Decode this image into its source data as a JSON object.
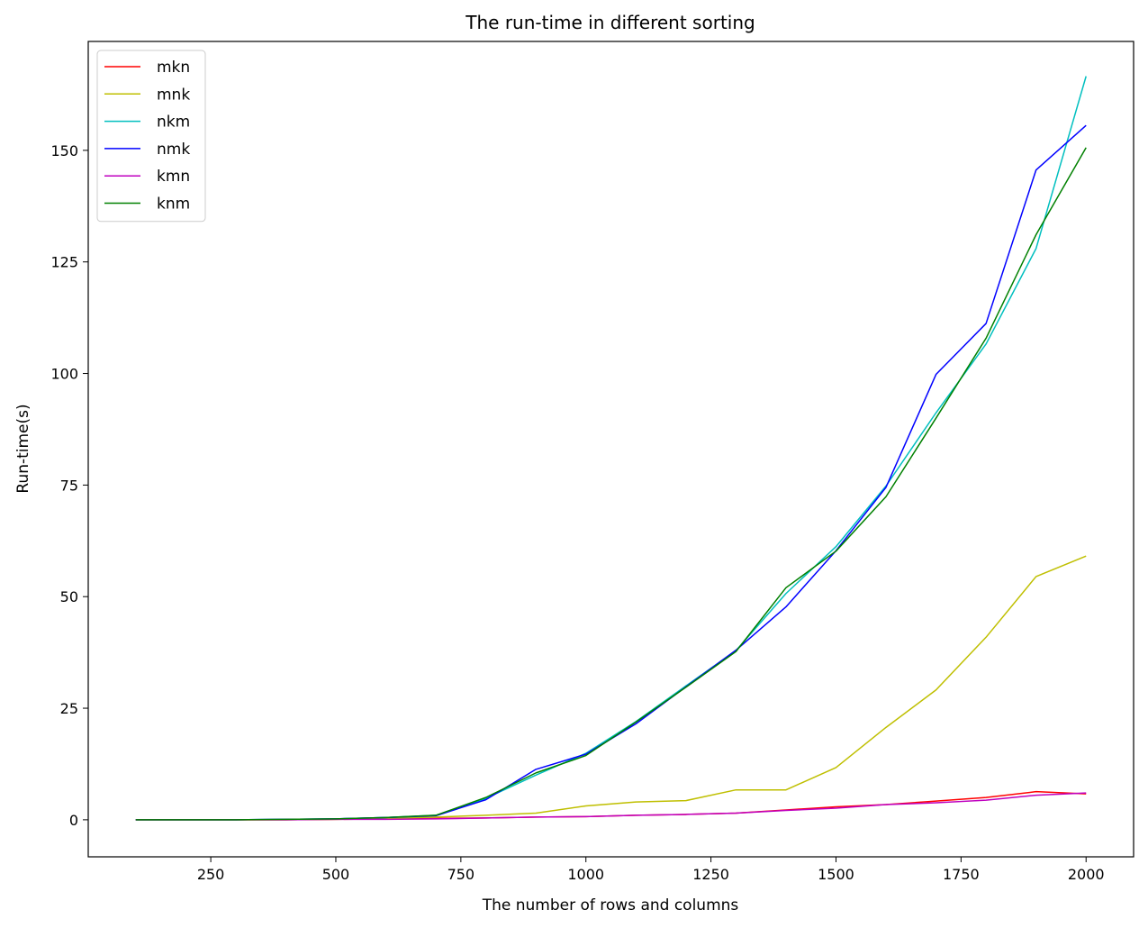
{
  "chart_data": {
    "type": "line",
    "title": "The run-time in different sorting",
    "xlabel": "The number of rows and columns",
    "ylabel": "Run-time(s)",
    "xlim": [
      5,
      2095
    ],
    "ylim": [
      -8.3,
      174.4
    ],
    "xticks": [
      250,
      500,
      750,
      1000,
      1250,
      1500,
      1750,
      2000
    ],
    "yticks": [
      0,
      25,
      50,
      75,
      100,
      125,
      150
    ],
    "grid": false,
    "legend_position": "top-left",
    "x": [
      100,
      200,
      300,
      400,
      500,
      600,
      700,
      800,
      900,
      1000,
      1100,
      1200,
      1300,
      1400,
      1500,
      1600,
      1700,
      1800,
      1900,
      2000
    ],
    "series": [
      {
        "name": "mkn",
        "color": "#ff0000",
        "values": [
          0,
          0,
          0,
          0,
          0.1,
          0.2,
          0.3,
          0.4,
          0.6,
          0.7,
          1.0,
          1.2,
          1.5,
          2.2,
          2.9,
          3.4,
          4.2,
          5.0,
          6.3,
          5.8
        ]
      },
      {
        "name": "mnk",
        "color": "#bfbf00",
        "values": [
          0,
          0,
          0,
          0,
          0.1,
          0.3,
          0.6,
          1.0,
          1.5,
          3.1,
          4.0,
          4.3,
          6.7,
          6.7,
          11.7,
          20.7,
          29.1,
          40.9,
          54.5,
          59.1
        ]
      },
      {
        "name": "nkm",
        "color": "#00bfbf",
        "values": [
          0,
          0,
          0,
          0.1,
          0.2,
          0.5,
          1.0,
          4.8,
          10.0,
          14.9,
          22.0,
          30.0,
          37.9,
          50.7,
          61.2,
          74.8,
          91.2,
          106.6,
          128.0,
          166.6
        ]
      },
      {
        "name": "nmk",
        "color": "#0000ff",
        "values": [
          0,
          0,
          0,
          0.1,
          0.2,
          0.5,
          0.9,
          4.5,
          11.3,
          14.7,
          21.5,
          29.8,
          38.0,
          47.7,
          60.3,
          74.5,
          99.8,
          111.2,
          145.6,
          155.6
        ]
      },
      {
        "name": "kmn",
        "color": "#bf00bf",
        "values": [
          0,
          0,
          0,
          0,
          0.1,
          0.1,
          0.2,
          0.4,
          0.6,
          0.7,
          1.0,
          1.2,
          1.5,
          2.1,
          2.6,
          3.4,
          3.8,
          4.4,
          5.5,
          6.0
        ]
      },
      {
        "name": "knm",
        "color": "#008000",
        "values": [
          0,
          0,
          0,
          0.1,
          0.2,
          0.5,
          1.0,
          5.0,
          10.5,
          14.4,
          21.9,
          29.7,
          37.7,
          52.0,
          60.2,
          72.4,
          90.0,
          107.9,
          131.1,
          150.6
        ]
      }
    ]
  }
}
